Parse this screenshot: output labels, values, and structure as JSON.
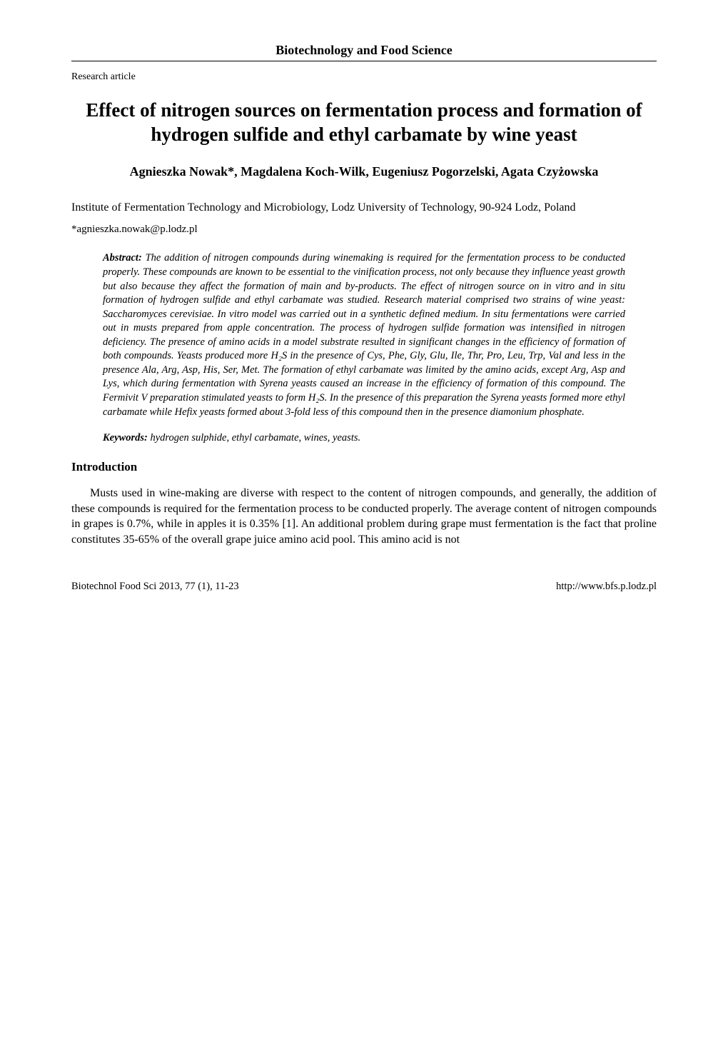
{
  "journal_header": "Biotechnology and Food Science",
  "article_type": "Research article",
  "title": "Effect of nitrogen sources on fermentation process and formation of hydrogen sulfide and ethyl carbamate by wine yeast",
  "authors": "Agnieszka Nowak*, Magdalena Koch-Wilk, Eugeniusz Pogorzelski, Agata Czyżowska",
  "affiliation": "Institute of Fermentation Technology and Microbiology, Lodz University of Technology, 90-924 Lodz, Poland",
  "email": "*agnieszka.nowak@p.lodz.pl",
  "abstract_label": "Abstract:",
  "abstract_text": " The addition of nitrogen compounds during winemaking is required for the fermentation process to be conducted properly. These compounds are known to be essential to the vinification process, not only because they influence yeast growth but also because they affect the formation of main and by-products. The effect of nitrogen source on in vitro and in situ formation of hydrogen sulfide and ethyl carbamate was studied. Research material comprised two strains of wine yeast: Saccharomyces cerevisiae. In vitro model was carried out in a synthetic defined medium. In situ fermentations were carried out in musts prepared from apple concentration. The process of hydrogen sulfide formation was intensified in nitrogen deficiency. The presence of amino acids in a model substrate resulted in significant changes in the efficiency of formation of both compounds. Yeasts produced more H₂S in the presence of Cys, Phe, Gly, Glu, Ile, Thr, Pro, Leu, Trp, Val and less in the presence Ala, Arg, Asp, His, Ser, Met. The formation of ethyl carbamate was limited by the amino acids, except Arg, Asp and Lys, which during fermentation with Syrena yeasts caused an increase in the efficiency of formation of this compound. The Fermivit V preparation stimulated yeasts to form H₂S. In the presence of this preparation the Syrena yeasts formed more ethyl carbamate while Hefix yeasts formed about 3-fold less of this compound then in the presence diamonium phosphate.",
  "keywords_label": "Keywords:",
  "keywords_text": " hydrogen sulphide, ethyl carbamate, wines, yeasts.",
  "section_heading": "Introduction",
  "body_para_1": "Musts used in wine-making are diverse with respect to the content of nitrogen compounds, and generally, the addition of these compounds is required for the fermentation process to be conducted properly. The average content of nitrogen compounds in grapes is 0.7%, while in apples it is 0.35% [1]. An additional problem during grape must fermentation is the fact that proline constitutes 35-65% of the overall grape juice amino acid pool. This amino acid is not",
  "footer_left": "Biotechnol Food Sci 2013, 77 (1), 11-23",
  "footer_right": "http://www.bfs.p.lodz.pl",
  "colors": {
    "text": "#000000",
    "background": "#ffffff",
    "rule": "#000000"
  },
  "typography": {
    "font_family": "Times New Roman",
    "title_fontsize": 27,
    "authors_fontsize": 18,
    "body_fontsize": 16,
    "abstract_fontsize": 14.5,
    "footer_fontsize": 14.5
  }
}
